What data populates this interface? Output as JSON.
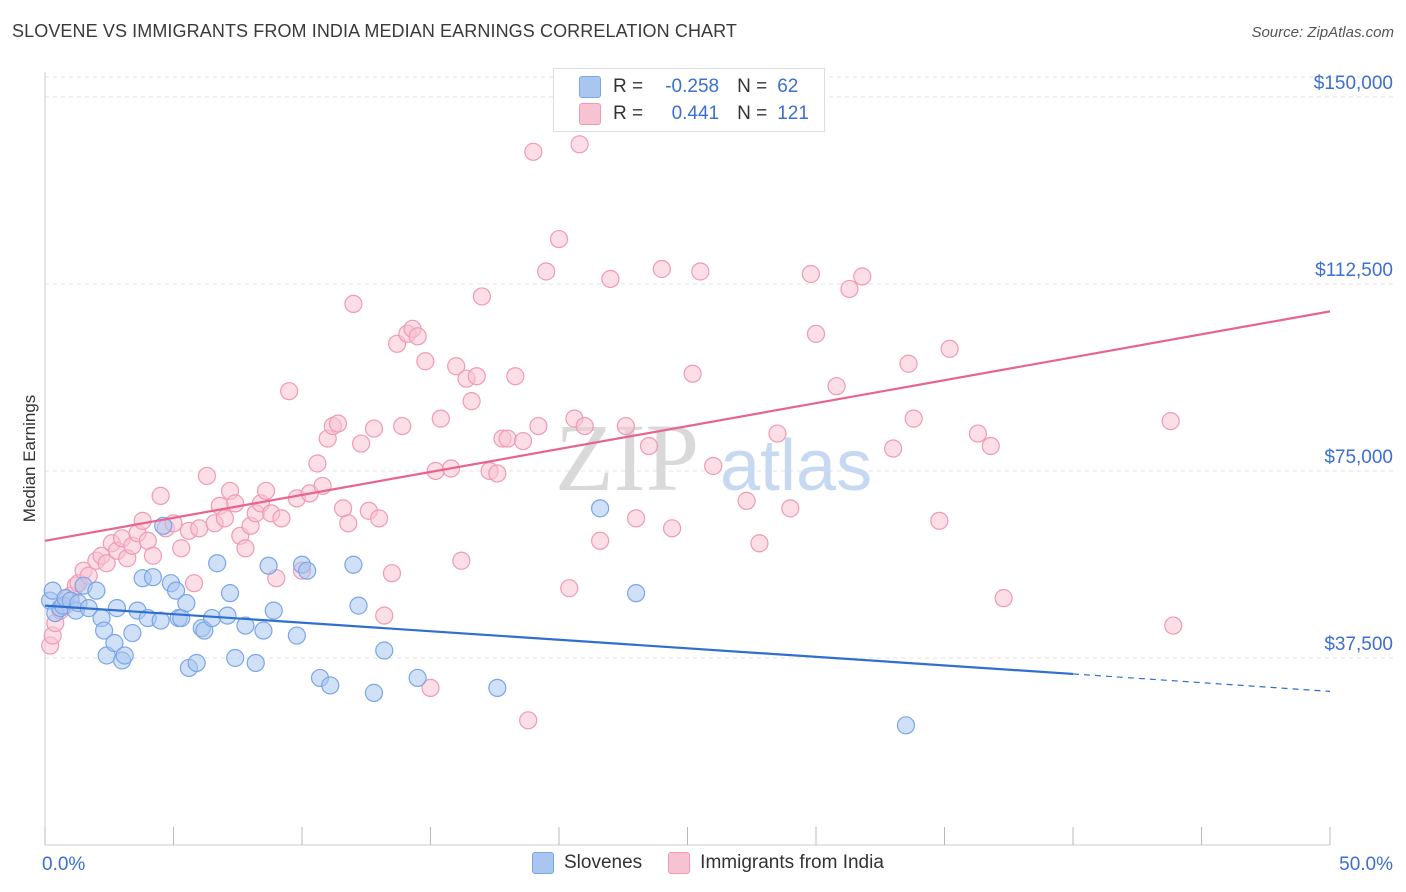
{
  "title": "SLOVENE VS IMMIGRANTS FROM INDIA MEDIAN EARNINGS CORRELATION CHART",
  "source": "Source: ZipAtlas.com",
  "watermark": {
    "zip": "ZIP",
    "atlas": "atlas"
  },
  "colors": {
    "blue": "#7aa6e8",
    "blue_fill": "#a9c6f0",
    "blue_line": "#2f6fd0",
    "pink": "#f09ab4",
    "pink_fill": "#f7c3d2",
    "pink_line": "#e8648f",
    "axis_text": "#3b6fd1",
    "grid": "#e3e3e3"
  },
  "legend": {
    "rows": [
      {
        "r_label": "R =",
        "r_value": "-0.258",
        "n_label": "N =",
        "n_value": "62"
      },
      {
        "r_label": "R =",
        "r_value": "0.441",
        "n_label": "N =",
        "n_value": "121"
      }
    ]
  },
  "bottom_legend": [
    "Slovenes",
    "Immigrants from India"
  ],
  "chart_data": {
    "type": "scatter",
    "title": "SLOVENE VS IMMIGRANTS FROM INDIA MEDIAN EARNINGS CORRELATION CHART",
    "xlabel": "",
    "ylabel": "Median Earnings",
    "xlim": [
      0,
      50
    ],
    "ylim": [
      0,
      155000
    ],
    "x_tick_labels": [
      "0.0%",
      "50.0%"
    ],
    "y_ticks": [
      37500,
      75000,
      112500,
      150000
    ],
    "y_tick_labels": [
      "$37,500",
      "$75,000",
      "$112,500",
      "$150,000"
    ],
    "series": [
      {
        "name": "Slovenes",
        "r": -0.258,
        "n": 62,
        "trend": {
          "x0": 0,
          "y0": 48000,
          "x1": 40,
          "y1": 34300,
          "dash_to_x": 50,
          "dash_to_y": 30800
        },
        "points": [
          [
            0.2,
            49000
          ],
          [
            0.3,
            51000
          ],
          [
            0.4,
            46500
          ],
          [
            0.6,
            47500
          ],
          [
            0.7,
            48000
          ],
          [
            0.8,
            49500
          ],
          [
            1.0,
            49000
          ],
          [
            1.2,
            47000
          ],
          [
            1.3,
            48500
          ],
          [
            1.5,
            52000
          ],
          [
            1.7,
            47500
          ],
          [
            2.0,
            51000
          ],
          [
            2.2,
            45500
          ],
          [
            2.3,
            43000
          ],
          [
            2.4,
            38000
          ],
          [
            2.7,
            40500
          ],
          [
            2.8,
            47500
          ],
          [
            3.0,
            37000
          ],
          [
            3.1,
            38000
          ],
          [
            3.4,
            42500
          ],
          [
            3.6,
            47000
          ],
          [
            3.8,
            53500
          ],
          [
            4.0,
            45500
          ],
          [
            4.2,
            53700
          ],
          [
            4.5,
            45000
          ],
          [
            4.6,
            64000
          ],
          [
            4.9,
            52500
          ],
          [
            5.1,
            51000
          ],
          [
            5.2,
            45500
          ],
          [
            5.3,
            45500
          ],
          [
            5.5,
            48500
          ],
          [
            5.6,
            35500
          ],
          [
            5.9,
            36500
          ],
          [
            6.1,
            43500
          ],
          [
            6.2,
            43000
          ],
          [
            6.5,
            45500
          ],
          [
            6.7,
            56500
          ],
          [
            7.1,
            46000
          ],
          [
            7.2,
            50500
          ],
          [
            7.4,
            37500
          ],
          [
            7.8,
            44000
          ],
          [
            8.2,
            36500
          ],
          [
            8.5,
            43000
          ],
          [
            8.7,
            56000
          ],
          [
            8.9,
            47000
          ],
          [
            9.8,
            42000
          ],
          [
            10.0,
            56200
          ],
          [
            10.2,
            55000
          ],
          [
            10.7,
            33500
          ],
          [
            11.1,
            32000
          ],
          [
            12.0,
            56200
          ],
          [
            12.2,
            48000
          ],
          [
            12.8,
            30500
          ],
          [
            13.2,
            39000
          ],
          [
            14.5,
            33500
          ],
          [
            17.6,
            31500
          ],
          [
            21.6,
            67500
          ],
          [
            23.0,
            50500
          ],
          [
            33.5,
            24000
          ]
        ]
      },
      {
        "name": "Immigrants from India",
        "r": 0.441,
        "n": 121,
        "trend": {
          "x0": 0,
          "y0": 61000,
          "x1": 50,
          "y1": 107000
        },
        "points": [
          [
            0.2,
            40000
          ],
          [
            0.3,
            42000
          ],
          [
            0.4,
            44500
          ],
          [
            0.6,
            47000
          ],
          [
            0.8,
            48000
          ],
          [
            1.0,
            50000
          ],
          [
            1.2,
            52000
          ],
          [
            1.3,
            52500
          ],
          [
            1.5,
            55000
          ],
          [
            1.7,
            54000
          ],
          [
            2.0,
            57000
          ],
          [
            2.2,
            58000
          ],
          [
            2.4,
            56500
          ],
          [
            2.6,
            60500
          ],
          [
            2.8,
            59000
          ],
          [
            3.0,
            61500
          ],
          [
            3.2,
            57500
          ],
          [
            3.4,
            60000
          ],
          [
            3.6,
            62500
          ],
          [
            3.8,
            65000
          ],
          [
            4.0,
            61000
          ],
          [
            4.2,
            58000
          ],
          [
            4.5,
            70000
          ],
          [
            4.7,
            63500
          ],
          [
            5.0,
            64500
          ],
          [
            5.3,
            59500
          ],
          [
            5.6,
            63000
          ],
          [
            5.8,
            52500
          ],
          [
            6.0,
            63500
          ],
          [
            6.3,
            74000
          ],
          [
            6.6,
            64500
          ],
          [
            6.8,
            68000
          ],
          [
            7.0,
            65500
          ],
          [
            7.2,
            71000
          ],
          [
            7.4,
            68500
          ],
          [
            7.6,
            62000
          ],
          [
            7.8,
            59500
          ],
          [
            8.0,
            64000
          ],
          [
            8.2,
            66500
          ],
          [
            8.4,
            68500
          ],
          [
            8.6,
            71000
          ],
          [
            8.8,
            66500
          ],
          [
            9.0,
            53500
          ],
          [
            9.2,
            65500
          ],
          [
            9.5,
            91000
          ],
          [
            9.8,
            69500
          ],
          [
            10.0,
            55000
          ],
          [
            10.3,
            70500
          ],
          [
            10.6,
            76500
          ],
          [
            10.8,
            72000
          ],
          [
            11.0,
            81500
          ],
          [
            11.2,
            84000
          ],
          [
            11.4,
            84500
          ],
          [
            11.6,
            67500
          ],
          [
            11.8,
            64500
          ],
          [
            12.0,
            108500
          ],
          [
            12.3,
            80500
          ],
          [
            12.6,
            67000
          ],
          [
            12.8,
            83500
          ],
          [
            13.0,
            65500
          ],
          [
            13.2,
            46000
          ],
          [
            13.5,
            54500
          ],
          [
            13.7,
            100500
          ],
          [
            13.9,
            84000
          ],
          [
            14.1,
            102500
          ],
          [
            14.3,
            103500
          ],
          [
            14.5,
            102000
          ],
          [
            14.8,
            97000
          ],
          [
            15.0,
            31500
          ],
          [
            15.2,
            75000
          ],
          [
            15.4,
            85500
          ],
          [
            15.8,
            75500
          ],
          [
            16.0,
            96000
          ],
          [
            16.2,
            57000
          ],
          [
            16.4,
            93500
          ],
          [
            16.6,
            89000
          ],
          [
            16.8,
            94000
          ],
          [
            17.0,
            110000
          ],
          [
            17.3,
            75000
          ],
          [
            17.6,
            74500
          ],
          [
            17.8,
            81500
          ],
          [
            18.0,
            81500
          ],
          [
            18.3,
            94000
          ],
          [
            18.6,
            81000
          ],
          [
            18.8,
            25000
          ],
          [
            19.0,
            139000
          ],
          [
            19.2,
            84000
          ],
          [
            19.5,
            115000
          ],
          [
            20.0,
            121500
          ],
          [
            20.4,
            51500
          ],
          [
            20.6,
            85500
          ],
          [
            20.8,
            140500
          ],
          [
            21.0,
            84000
          ],
          [
            21.6,
            61000
          ],
          [
            22.0,
            113500
          ],
          [
            22.6,
            84000
          ],
          [
            23.0,
            65500
          ],
          [
            23.5,
            80000
          ],
          [
            24.0,
            115500
          ],
          [
            24.4,
            63500
          ],
          [
            25.2,
            94500
          ],
          [
            25.5,
            115000
          ],
          [
            26.0,
            76000
          ],
          [
            27.3,
            69000
          ],
          [
            27.8,
            60500
          ],
          [
            28.5,
            82500
          ],
          [
            29.0,
            67500
          ],
          [
            29.8,
            114500
          ],
          [
            30.0,
            102500
          ],
          [
            30.8,
            92000
          ],
          [
            31.3,
            111500
          ],
          [
            31.8,
            114000
          ],
          [
            33.0,
            79500
          ],
          [
            33.6,
            96500
          ],
          [
            33.8,
            85500
          ],
          [
            34.8,
            65000
          ],
          [
            35.2,
            99500
          ],
          [
            36.3,
            82500
          ],
          [
            36.8,
            80000
          ],
          [
            37.3,
            49500
          ],
          [
            43.8,
            85000
          ],
          [
            43.9,
            44000
          ]
        ]
      }
    ]
  }
}
